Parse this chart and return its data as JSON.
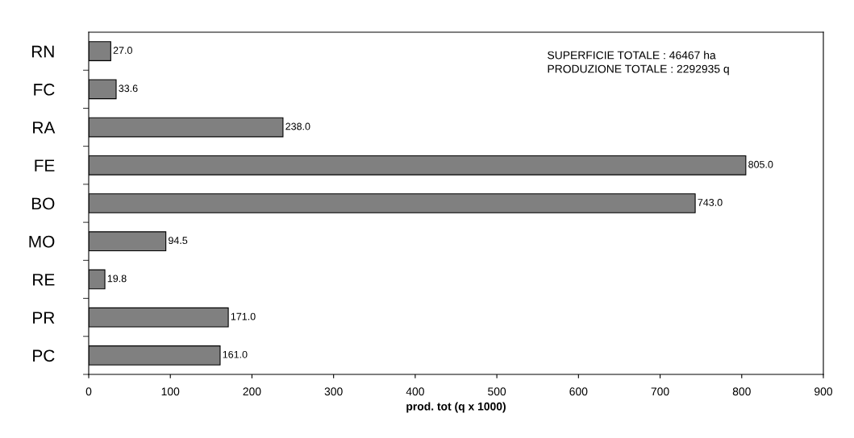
{
  "chart_data": {
    "type": "bar",
    "orientation": "horizontal",
    "xlabel": "prod. tot (q x 1000)",
    "categories": [
      "RN",
      "FC",
      "RA",
      "FE",
      "BO",
      "MO",
      "RE",
      "PR",
      "PC"
    ],
    "values": [
      27.0,
      33.6,
      238.0,
      805.0,
      743.0,
      94.5,
      19.8,
      171.0,
      161.0
    ],
    "value_labels": [
      "27.0",
      "33.6",
      "238.0",
      "805.0",
      "743.0",
      "94.5",
      "19.8",
      "171.0",
      "161.0"
    ],
    "color": "#808080",
    "xlim": [
      0,
      900
    ],
    "xticks": [
      0,
      100,
      200,
      300,
      400,
      500,
      600,
      700,
      800,
      900
    ],
    "grid": false,
    "legend": false,
    "annotations": [
      "SUPERFICIE TOTALE : 46467 ha",
      "PRODUZIONE TOTALE : 2292935 q"
    ]
  }
}
